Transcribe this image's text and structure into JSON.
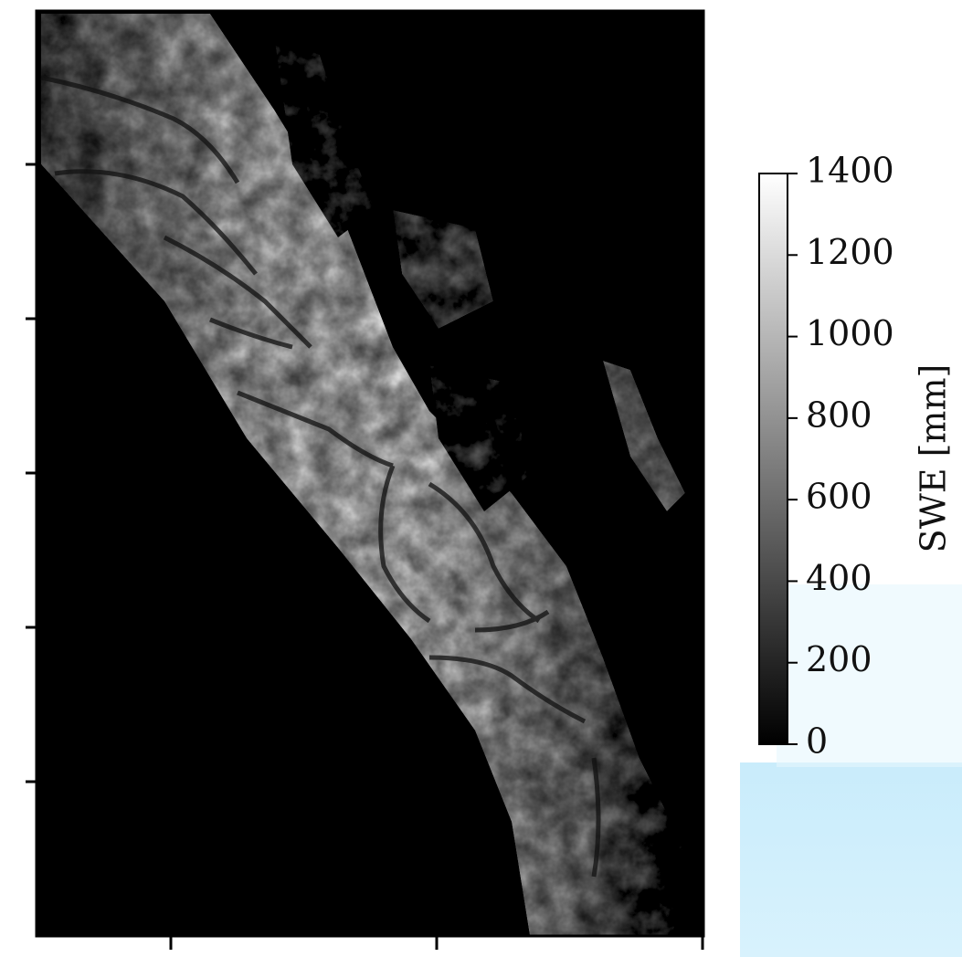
{
  "chart_data": {
    "type": "image",
    "colorbar": {
      "label": "SWE [mm]",
      "clim": [
        0,
        1400
      ],
      "ticks": [
        0,
        200,
        400,
        600,
        800,
        1000,
        1200,
        1400
      ],
      "cmap": [
        "#000000",
        "#ffffff"
      ]
    }
  }
}
